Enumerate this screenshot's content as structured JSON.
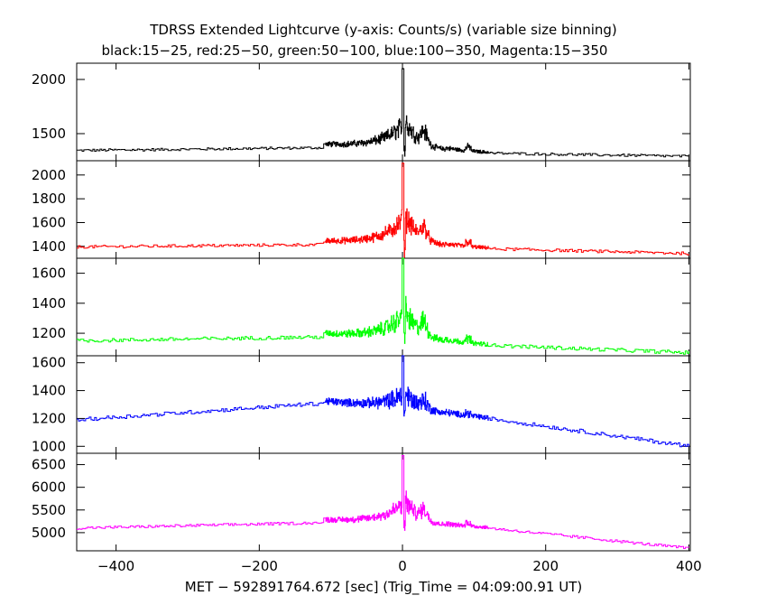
{
  "chart_data": {
    "type": "line",
    "title": "TDRSS Extended Lightcurve (y-axis: Counts/s) (variable size binning)",
    "subtitle": "black:15−25, red:25−50, green:50−100, blue:100−350, Magenta:15−350",
    "xlabel": "MET − 592891764.672 [sec] (Trig_Time = 04:09:00.91 UT)",
    "xlim": [
      -455,
      402
    ],
    "xticks": [
      -400,
      -200,
      0,
      200,
      400
    ],
    "xtick_labels": [
      "−400",
      "−200",
      "0",
      "200",
      "400"
    ],
    "panels": [
      {
        "band": "15-25",
        "color": "#000000",
        "ylim": [
          1250,
          2150
        ],
        "yticks": [
          1500,
          2000
        ],
        "pre_level": [
          1345,
          1370
        ],
        "peak": 2100,
        "tail_level": [
          1320,
          1290
        ],
        "noise": 12
      },
      {
        "band": "25-50",
        "color": "#ff0000",
        "ylim": [
          1300,
          2120
        ],
        "yticks": [
          1400,
          1600,
          1800,
          2000
        ],
        "pre_level": [
          1395,
          1415
        ],
        "peak": 2100,
        "tail_level": [
          1380,
          1340
        ],
        "noise": 12
      },
      {
        "band": "50-100",
        "color": "#00ff00",
        "ylim": [
          1050,
          1700
        ],
        "yticks": [
          1200,
          1400,
          1600
        ],
        "pre_level": [
          1150,
          1175
        ],
        "peak": 1700,
        "tail_level": [
          1120,
          1070
        ],
        "noise": 12
      },
      {
        "band": "100-350",
        "color": "#0000ff",
        "ylim": [
          950,
          1650
        ],
        "yticks": [
          1000,
          1200,
          1400,
          1600
        ],
        "pre_level": [
          1190,
          1310
        ],
        "peak": 1650,
        "tail_level": [
          1200,
          1000
        ],
        "noise": 14
      },
      {
        "band": "15-350",
        "color": "#ff00ff",
        "ylim": [
          4600,
          6750
        ],
        "yticks": [
          5000,
          5500,
          6000,
          6500
        ],
        "pre_level": [
          5100,
          5220
        ],
        "peak": 6700,
        "tail_level": [
          5100,
          4650
        ],
        "noise": 30
      }
    ]
  }
}
